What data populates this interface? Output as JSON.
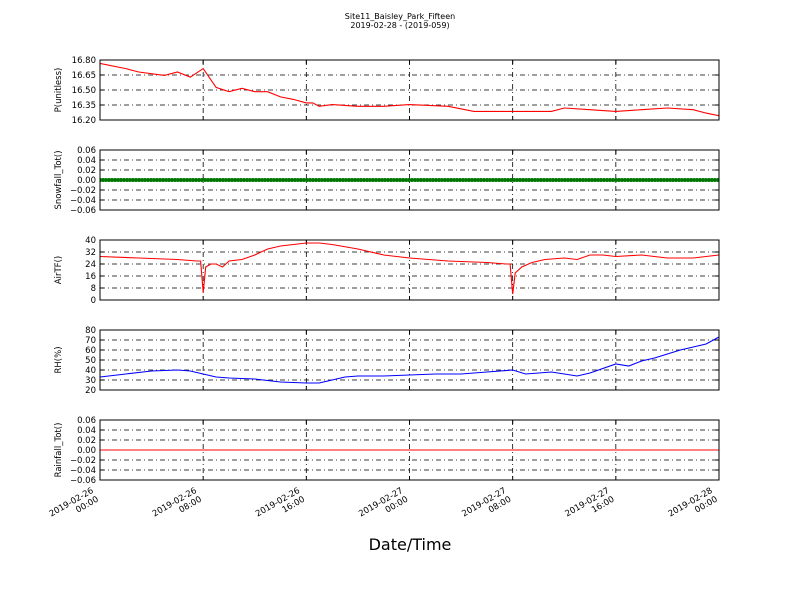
{
  "figure": {
    "title": "Site11_Baisley_Park_Fifteen",
    "subtitle": "2019-02-28 - (2019-059)",
    "xlabel": "Date/Time"
  },
  "chart_data": [
    {
      "type": "line",
      "ylabel": "P(unitless)",
      "ylim": [
        16.1,
        16.8
      ],
      "yticks": [
        "16.80",
        "16.65",
        "16.50",
        "16.35",
        "16.20"
      ],
      "color": "#ff0000",
      "x_hours": [
        0,
        2,
        3,
        5,
        6,
        7,
        8,
        9,
        10,
        11,
        12,
        13,
        14,
        15,
        16,
        16.5,
        17,
        18,
        20,
        22,
        24,
        27,
        29,
        31,
        33,
        35,
        36,
        38,
        40,
        42,
        44,
        46,
        47,
        48
      ],
      "values": [
        16.76,
        16.7,
        16.66,
        16.62,
        16.66,
        16.6,
        16.7,
        16.48,
        16.43,
        16.47,
        16.43,
        16.43,
        16.37,
        16.34,
        16.3,
        16.3,
        16.26,
        16.28,
        16.26,
        16.26,
        16.28,
        16.26,
        16.2,
        16.2,
        16.2,
        16.2,
        16.24,
        16.22,
        16.2,
        16.22,
        16.24,
        16.22,
        16.18,
        16.15
      ]
    },
    {
      "type": "line",
      "ylabel": "Snowfall_Tot()",
      "ylim": [
        -0.06,
        0.06
      ],
      "yticks": [
        "0.06",
        "0.04",
        "0.02",
        "0.00",
        "−0.02",
        "−0.04",
        "−0.06"
      ],
      "color": "#007700",
      "markers": true,
      "constant_value": 0.0
    },
    {
      "type": "line",
      "ylabel": "AirTF()",
      "ylim": [
        0,
        40
      ],
      "yticks": [
        "40",
        "32",
        "24",
        "16",
        "8",
        "0"
      ],
      "color": "#ff0000",
      "x_hours": [
        0,
        3,
        6,
        7.5,
        7.8,
        8,
        8.2,
        8.6,
        9,
        9.5,
        10,
        11,
        12,
        13,
        14,
        15,
        16,
        16.5,
        17,
        18,
        20,
        22,
        24,
        27,
        30,
        31.5,
        31.8,
        32,
        32.2,
        32.7,
        33.5,
        34.5,
        36,
        37,
        38,
        39,
        40,
        42,
        44,
        46,
        48
      ],
      "values": [
        29,
        28,
        27,
        26,
        26,
        5,
        22,
        24,
        24,
        22,
        26,
        27,
        30,
        34,
        36,
        37,
        38,
        38,
        38,
        37,
        34,
        30,
        28,
        26,
        25,
        24,
        24,
        4,
        18,
        22,
        25,
        27,
        28,
        27,
        30,
        30,
        29,
        30,
        28,
        28,
        30
      ]
    },
    {
      "type": "line",
      "ylabel": "RH(%)",
      "ylim": [
        20,
        80
      ],
      "yticks": [
        "80",
        "70",
        "60",
        "50",
        "40",
        "30",
        "20"
      ],
      "color": "#0000ff",
      "x_hours": [
        0,
        2,
        4,
        6,
        7,
        8,
        9,
        10,
        12,
        14,
        16,
        17,
        18,
        19,
        20,
        22,
        24,
        26,
        28,
        30,
        32,
        33,
        34,
        35,
        36,
        37,
        38,
        40,
        41,
        42,
        43,
        44,
        45,
        46,
        47,
        48
      ],
      "values": [
        33,
        36,
        39,
        40,
        39,
        36,
        33,
        32,
        31,
        28,
        27,
        27,
        30,
        33,
        34,
        34,
        35,
        36,
        36,
        38,
        40,
        36,
        37,
        38,
        36,
        34,
        37,
        46,
        44,
        49,
        52,
        56,
        60,
        63,
        66,
        73
      ]
    },
    {
      "type": "line",
      "ylabel": "Rainfall_Tot()",
      "ylim": [
        -0.06,
        0.06
      ],
      "yticks": [
        "0.06",
        "0.04",
        "0.02",
        "0.00",
        "−0.02",
        "−0.04",
        "−0.06"
      ],
      "color": "#ff0000",
      "constant_value": 0.0
    }
  ],
  "x_axis": {
    "ticks": [
      [
        "2019-02-26",
        "00:00"
      ],
      [
        "2019-02-26",
        "08:00"
      ],
      [
        "2019-02-26",
        "16:00"
      ],
      [
        "2019-02-27",
        "00:00"
      ],
      [
        "2019-02-27",
        "08:00"
      ],
      [
        "2019-02-27",
        "16:00"
      ],
      [
        "2019-02-28",
        "00:00"
      ]
    ],
    "range_hours": [
      0,
      48
    ]
  }
}
